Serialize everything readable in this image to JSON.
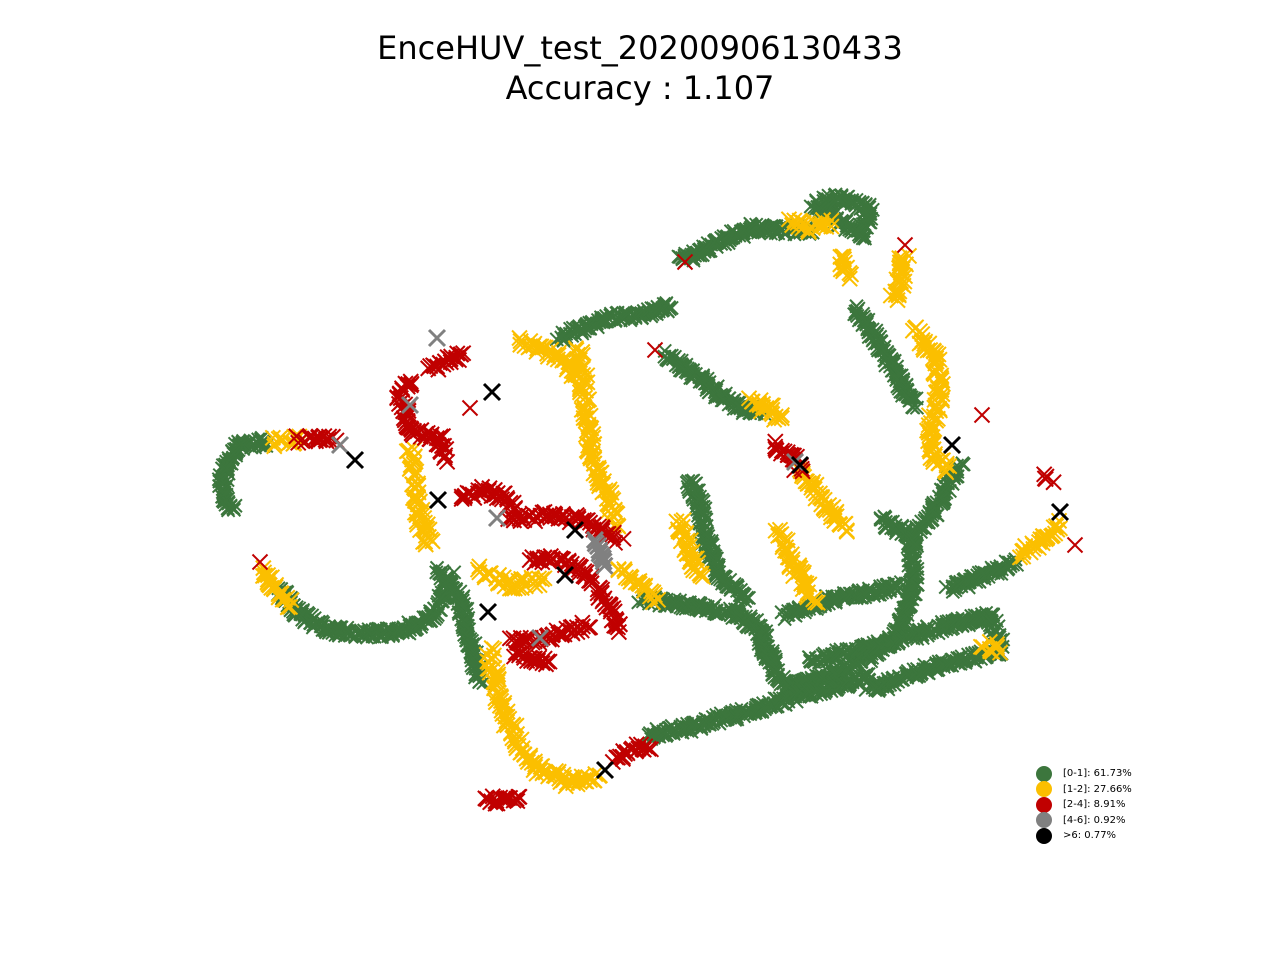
{
  "chart_data": {
    "type": "scatter",
    "title": "EnceHUV_test_20200906130433",
    "subtitle": "Accuracy : 1.107",
    "grid": false,
    "axes_visible": false,
    "legend_placement": "lower-right",
    "marker": "x",
    "series": [
      {
        "label": "[0-1]: 61.73%",
        "color": "#3c763d",
        "paths": [
          [
            [
              840,
              197
            ],
            [
              870,
              210
            ],
            [
              862,
              235
            ],
            [
              835,
              218
            ],
            [
              815,
              205
            ],
            [
              840,
              197
            ]
          ],
          [
            [
              810,
              230
            ],
            [
              775,
              230
            ],
            [
              750,
              228
            ],
            [
              725,
              240
            ],
            [
              700,
              252
            ],
            [
              680,
              260
            ]
          ],
          [
            [
              670,
              305
            ],
            [
              640,
              315
            ],
            [
              610,
              318
            ],
            [
              580,
              330
            ],
            [
              560,
              340
            ]
          ],
          [
            [
              665,
              355
            ],
            [
              695,
              375
            ],
            [
              720,
              395
            ],
            [
              745,
              410
            ],
            [
              765,
              410
            ]
          ],
          [
            [
              855,
              310
            ],
            [
              880,
              345
            ],
            [
              905,
              390
            ],
            [
              915,
              405
            ]
          ],
          [
            [
              265,
              442
            ],
            [
              240,
              445
            ],
            [
              225,
              465
            ],
            [
              222,
              492
            ],
            [
              232,
              512
            ]
          ],
          [
            [
              280,
              590
            ],
            [
              300,
              615
            ],
            [
              330,
              630
            ],
            [
              360,
              634
            ],
            [
              400,
              632
            ],
            [
              430,
              618
            ],
            [
              445,
              595
            ],
            [
              450,
              575
            ]
          ],
          [
            [
              440,
              570
            ],
            [
              460,
              600
            ],
            [
              470,
              640
            ],
            [
              480,
              680
            ]
          ],
          [
            [
              690,
              480
            ],
            [
              700,
              505
            ],
            [
              705,
              540
            ],
            [
              720,
              575
            ],
            [
              745,
              600
            ]
          ],
          [
            [
              640,
              600
            ],
            [
              690,
              605
            ],
            [
              740,
              615
            ],
            [
              760,
              630
            ],
            [
              770,
              660
            ]
          ],
          [
            [
              760,
              640
            ],
            [
              780,
              680
            ],
            [
              800,
              685
            ],
            [
              840,
              672
            ],
            [
              880,
              650
            ],
            [
              900,
              630
            ],
            [
              915,
              580
            ],
            [
              910,
              540
            ]
          ],
          [
            [
              910,
              540
            ],
            [
              935,
              510
            ],
            [
              950,
              480
            ],
            [
              960,
              465
            ]
          ],
          [
            [
              880,
              520
            ],
            [
              900,
              530
            ],
            [
              915,
              545
            ]
          ],
          [
            [
              810,
              660
            ],
            [
              860,
              650
            ],
            [
              900,
              640
            ],
            [
              950,
              625
            ],
            [
              990,
              615
            ],
            [
              1000,
              645
            ]
          ],
          [
            [
              950,
              590
            ],
            [
              985,
              575
            ],
            [
              1015,
              562
            ]
          ],
          [
            [
              870,
              690
            ],
            [
              920,
              672
            ],
            [
              960,
              660
            ],
            [
              1000,
              652
            ]
          ],
          [
            [
              650,
              735
            ],
            [
              700,
              725
            ],
            [
              760,
              708
            ],
            [
              800,
              695
            ],
            [
              840,
              685
            ],
            [
              870,
              678
            ]
          ],
          [
            [
              785,
              615
            ],
            [
              830,
              600
            ],
            [
              870,
              592
            ],
            [
              900,
              586
            ]
          ]
        ]
      },
      {
        "label": "[1-2]: 27.66%",
        "color": "#fbbf00",
        "paths": [
          [
            [
              790,
              222
            ],
            [
              812,
              228
            ],
            [
              830,
              222
            ]
          ],
          [
            [
              840,
              255
            ],
            [
              848,
              275
            ]
          ],
          [
            [
              905,
              255
            ],
            [
              900,
              285
            ],
            [
              895,
              300
            ]
          ],
          [
            [
              915,
              330
            ],
            [
              935,
              360
            ],
            [
              940,
              395
            ],
            [
              930,
              430
            ],
            [
              935,
              455
            ],
            [
              950,
              470
            ]
          ],
          [
            [
              580,
              350
            ],
            [
              585,
              400
            ],
            [
              590,
              445
            ],
            [
              598,
              475
            ],
            [
              610,
              500
            ],
            [
              615,
              525
            ]
          ],
          [
            [
              520,
              340
            ],
            [
              545,
              350
            ],
            [
              565,
              360
            ],
            [
              575,
              375
            ]
          ],
          [
            [
              410,
              450
            ],
            [
              415,
              490
            ],
            [
              420,
              520
            ],
            [
              430,
              545
            ]
          ],
          [
            [
              480,
              570
            ],
            [
              510,
              585
            ],
            [
              545,
              580
            ]
          ],
          [
            [
              490,
              650
            ],
            [
              495,
              685
            ],
            [
              505,
              715
            ],
            [
              520,
              745
            ],
            [
              540,
              770
            ],
            [
              570,
              782
            ],
            [
              600,
              775
            ]
          ],
          [
            [
              680,
              520
            ],
            [
              690,
              555
            ],
            [
              700,
              580
            ]
          ],
          [
            [
              780,
              530
            ],
            [
              790,
              560
            ],
            [
              805,
              585
            ],
            [
              815,
              600
            ]
          ],
          [
            [
              800,
              470
            ],
            [
              815,
              490
            ],
            [
              830,
              510
            ],
            [
              845,
              530
            ]
          ],
          [
            [
              1020,
              555
            ],
            [
              1045,
              540
            ],
            [
              1060,
              525
            ]
          ],
          [
            [
              265,
              570
            ],
            [
              275,
              590
            ],
            [
              290,
              605
            ]
          ],
          [
            [
              275,
              442
            ],
            [
              300,
              440
            ]
          ],
          [
            [
              620,
              570
            ],
            [
              640,
              585
            ],
            [
              655,
              600
            ]
          ],
          [
            [
              750,
              400
            ],
            [
              770,
              410
            ],
            [
              780,
              418
            ]
          ],
          [
            [
              985,
              645
            ],
            [
              1000,
              650
            ]
          ]
        ]
      },
      {
        "label": "[2-4]: 8.91%",
        "color": "#c00000",
        "paths": [
          [
            [
              410,
              380
            ],
            [
              400,
              400
            ],
            [
              410,
              430
            ],
            [
              440,
              440
            ],
            [
              445,
              460
            ]
          ],
          [
            [
              430,
              370
            ],
            [
              450,
              360
            ],
            [
              465,
              355
            ]
          ],
          [
            [
              460,
              500
            ],
            [
              480,
              490
            ],
            [
              500,
              495
            ],
            [
              515,
              510
            ]
          ],
          [
            [
              510,
              520
            ],
            [
              550,
              515
            ],
            [
              580,
              520
            ],
            [
              600,
              530
            ],
            [
              620,
              540
            ]
          ],
          [
            [
              530,
              560
            ],
            [
              560,
              560
            ],
            [
              580,
              570
            ],
            [
              600,
              590
            ],
            [
              610,
              610
            ],
            [
              620,
              630
            ]
          ],
          [
            [
              510,
              640
            ],
            [
              540,
              640
            ],
            [
              565,
              632
            ],
            [
              590,
              625
            ]
          ],
          [
            [
              515,
              655
            ],
            [
              535,
              660
            ],
            [
              550,
              662
            ]
          ],
          [
            [
              485,
              800
            ],
            [
              505,
              800
            ],
            [
              520,
              795
            ]
          ],
          [
            [
              775,
              445
            ],
            [
              790,
              455
            ],
            [
              800,
              470
            ]
          ],
          [
            [
              300,
              440
            ],
            [
              320,
              438
            ],
            [
              335,
              440
            ]
          ],
          [
            [
              260,
              562
            ]
          ],
          [
            [
              905,
              245
            ]
          ],
          [
            [
              982,
              415
            ]
          ],
          [
            [
              1045,
              475
            ],
            [
              1050,
              480
            ]
          ],
          [
            [
              1075,
              545
            ]
          ],
          [
            [
              470,
              408
            ]
          ],
          [
            [
              655,
              350
            ]
          ],
          [
            [
              685,
              262
            ]
          ],
          [
            [
              615,
              760
            ],
            [
              630,
              750
            ],
            [
              650,
              745
            ]
          ]
        ]
      },
      {
        "label": "[4-6]: 0.92%",
        "color": "#808080",
        "paths": [
          [
            [
              437,
              338
            ]
          ],
          [
            [
              410,
              405
            ]
          ],
          [
            [
              340,
              445
            ]
          ],
          [
            [
              497,
              518
            ]
          ],
          [
            [
              595,
              540
            ],
            [
              605,
              565
            ]
          ],
          [
            [
              540,
              638
            ]
          ],
          [
            [
              795,
              462
            ]
          ]
        ]
      },
      {
        "label": ">6: 0.77%",
        "color": "#000000",
        "paths": [
          [
            [
              355,
              460
            ]
          ],
          [
            [
              438,
              500
            ]
          ],
          [
            [
              492,
              392
            ]
          ],
          [
            [
              575,
              530
            ]
          ],
          [
            [
              565,
              575
            ]
          ],
          [
            [
              488,
              612
            ]
          ],
          [
            [
              605,
              770
            ]
          ],
          [
            [
              1060,
              512
            ]
          ],
          [
            [
              952,
              445
            ]
          ],
          [
            [
              800,
              465
            ]
          ]
        ]
      }
    ]
  }
}
